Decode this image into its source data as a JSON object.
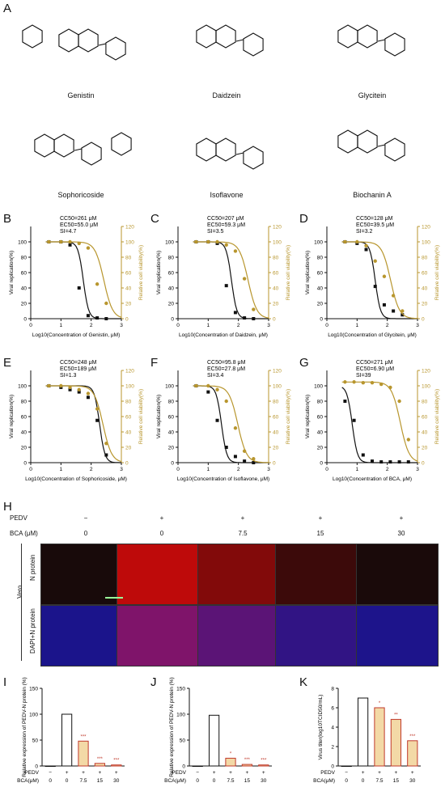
{
  "panelA": {
    "label": "A",
    "compounds": [
      "Genistin",
      "Daidzein",
      "Glycitein",
      "Sophoricoside",
      "Isoflavone",
      "Biochanin A"
    ]
  },
  "doseCurves": [
    {
      "label": "B",
      "cc": "CC50=261 μM",
      "ec": "EC50=55.0 μM",
      "si": "SI=4.7",
      "xlabel": "Log10(Concentration of Genistin, μM)",
      "ec50log": 1.74,
      "cc50log": 2.42,
      "chart_data": {
        "type": "line",
        "xlim": [
          0,
          3
        ],
        "ylim": [
          0,
          120
        ],
        "x": [
          0.6,
          1.0,
          1.3,
          1.6,
          1.9,
          2.2,
          2.5
        ],
        "series": [
          {
            "name": "Viral replication(%)",
            "values": [
              100,
              100,
              96,
              40,
              4,
              1,
              0
            ]
          },
          {
            "name": "Relative cell viability(%)",
            "values": [
              100,
              100,
              100,
              98,
              92,
              45,
              20
            ]
          }
        ]
      }
    },
    {
      "label": "C",
      "cc": "CC50=207 μM",
      "ec": "EC50=59.3 μM",
      "si": "SI=3.5",
      "xlabel": "Log10(Concentration of Daidzein, μM)",
      "ec50log": 1.77,
      "cc50log": 2.32,
      "chart_data": {
        "type": "line",
        "xlim": [
          0,
          3
        ],
        "ylim": [
          0,
          120
        ],
        "x": [
          0.6,
          1.0,
          1.3,
          1.6,
          1.9,
          2.2,
          2.5
        ],
        "series": [
          {
            "name": "Viral replication(%)",
            "values": [
              100,
              100,
              98,
              43,
              8,
              1,
              0
            ]
          },
          {
            "name": "Relative cell viability(%)",
            "values": [
              100,
              100,
              100,
              96,
              88,
              52,
              12
            ]
          }
        ]
      }
    },
    {
      "label": "D",
      "cc": "CC50=128 μM",
      "ec": "EC50=39.5 μM",
      "si": "SI=3.2",
      "xlabel": "Log10(Concentration of Glycitein, μM)",
      "ec50log": 1.6,
      "cc50log": 2.11,
      "chart_data": {
        "type": "line",
        "xlim": [
          0,
          3
        ],
        "ylim": [
          0,
          120
        ],
        "x": [
          0.6,
          1.0,
          1.3,
          1.6,
          1.9,
          2.2,
          2.5
        ],
        "series": [
          {
            "name": "Viral replication(%)",
            "values": [
              100,
              98,
              90,
              42,
              18,
              10,
              5
            ]
          },
          {
            "name": "Relative cell viability(%)",
            "values": [
              100,
              100,
              95,
              75,
              55,
              30,
              10
            ]
          }
        ]
      }
    },
    {
      "label": "E",
      "cc": "CC50=248 μM",
      "ec": "EC50=189 μM",
      "si": "SI=1.3",
      "xlabel": "Log10(Concentration of Sophoricoside, μM)",
      "ec50log": 2.28,
      "cc50log": 2.39,
      "chart_data": {
        "type": "line",
        "xlim": [
          0,
          3
        ],
        "ylim": [
          0,
          120
        ],
        "x": [
          0.6,
          1.0,
          1.3,
          1.6,
          1.9,
          2.2,
          2.5
        ],
        "series": [
          {
            "name": "Viral replication(%)",
            "values": [
              100,
              98,
              95,
              92,
              85,
              55,
              10
            ]
          },
          {
            "name": "Relative cell viability(%)",
            "values": [
              100,
              100,
              98,
              95,
              90,
              70,
              25
            ]
          }
        ]
      }
    },
    {
      "label": "F",
      "cc": "CC50=95.8 μM",
      "ec": "EC50=27.8 μM",
      "si": "SI=3.4",
      "xlabel": "Log10(Concentration of Isoflavone, μM)",
      "ec50log": 1.44,
      "cc50log": 1.98,
      "chart_data": {
        "type": "line",
        "xlim": [
          0,
          3
        ],
        "ylim": [
          0,
          120
        ],
        "x": [
          0.6,
          1.0,
          1.3,
          1.6,
          1.9,
          2.2,
          2.5
        ],
        "series": [
          {
            "name": "Viral replication(%)",
            "values": [
              100,
              92,
              55,
              20,
              8,
              2,
              0
            ]
          },
          {
            "name": "Relative cell viability(%)",
            "values": [
              100,
              100,
              95,
              80,
              45,
              15,
              5
            ]
          }
        ]
      }
    },
    {
      "label": "G",
      "cc": "CC50=271 μM",
      "ec": "EC50=6.90 μM",
      "si": "SI=39",
      "xlabel": "Log10(Concentration of BCA, μM)",
      "ec50log": 0.84,
      "cc50log": 2.43,
      "chart_data": {
        "type": "line",
        "xlim": [
          0,
          3
        ],
        "ylim": [
          0,
          120
        ],
        "x": [
          0.6,
          0.9,
          1.2,
          1.5,
          1.8,
          2.1,
          2.4,
          2.7
        ],
        "series": [
          {
            "name": "Viral replication(%)",
            "values": [
              80,
              55,
              10,
              2,
              1,
              1,
              1,
              1
            ]
          },
          {
            "name": "Relative cell viability(%)",
            "values": [
              105,
              105,
              104,
              104,
              102,
              98,
              80,
              30
            ]
          }
        ]
      }
    }
  ],
  "dualAxis": {
    "left": "Viral replication(%)",
    "right": "Relative cell viability(%)",
    "ticksX": [
      "0",
      "1",
      "2",
      "3"
    ],
    "ticksY": [
      "0",
      "20",
      "40",
      "60",
      "80",
      "100",
      "120"
    ]
  },
  "panelH": {
    "label": "H",
    "pedv_label": "PEDV",
    "bca_label": "BCA (μM)",
    "pedv": [
      "−",
      "+",
      "+",
      "+",
      "+"
    ],
    "bca": [
      "0",
      "0",
      "7.5",
      "15",
      "30"
    ],
    "cell": "Vero",
    "row1": "N protein",
    "row2": "DAPI+N protein",
    "intensity": [
      0.02,
      0.85,
      0.55,
      0.2,
      0.03
    ]
  },
  "barCharts": [
    {
      "label": "I",
      "ylabel": "Relative expression of PEDV-N protein (%)",
      "ticks": [
        "0",
        "50",
        "100",
        "150"
      ],
      "ylim": [
        0,
        150
      ],
      "stars": [
        "",
        "",
        "***",
        "***",
        "***"
      ],
      "chart_data": {
        "type": "bar",
        "categories": [
          "0",
          "0",
          "7.5",
          "15",
          "30"
        ],
        "values": [
          0,
          100,
          48,
          5,
          2
        ],
        "ylim": [
          0,
          150
        ]
      }
    },
    {
      "label": "J",
      "ylabel": "Relative expression of PEDV-N protein (%)",
      "ticks": [
        "0",
        "50",
        "100",
        "150"
      ],
      "ylim": [
        0,
        150
      ],
      "stars": [
        "",
        "",
        "*",
        "***",
        "***"
      ],
      "chart_data": {
        "type": "bar",
        "categories": [
          "0",
          "0",
          "7.5",
          "15",
          "30"
        ],
        "values": [
          0,
          98,
          15,
          3,
          2
        ],
        "ylim": [
          0,
          150
        ]
      }
    },
    {
      "label": "K",
      "ylabel": "Virus titer(log10TCID50/mL)",
      "ticks": [
        "0",
        "2",
        "4",
        "6",
        "8"
      ],
      "ylim": [
        0,
        8
      ],
      "stars": [
        "",
        "",
        "*",
        "**",
        "***"
      ],
      "chart_data": {
        "type": "bar",
        "categories": [
          "0",
          "0",
          "7.5",
          "15",
          "30"
        ],
        "values": [
          0,
          7.0,
          6.0,
          4.8,
          2.6
        ],
        "ylim": [
          0,
          8
        ]
      }
    }
  ],
  "barAxis": {
    "pedv_label": "PEDV",
    "bca_label": "BCA(μM)",
    "pedv": [
      "−",
      "+",
      "+",
      "+",
      "+"
    ],
    "bca": [
      "0",
      "0",
      "7.5",
      "15",
      "30"
    ]
  }
}
